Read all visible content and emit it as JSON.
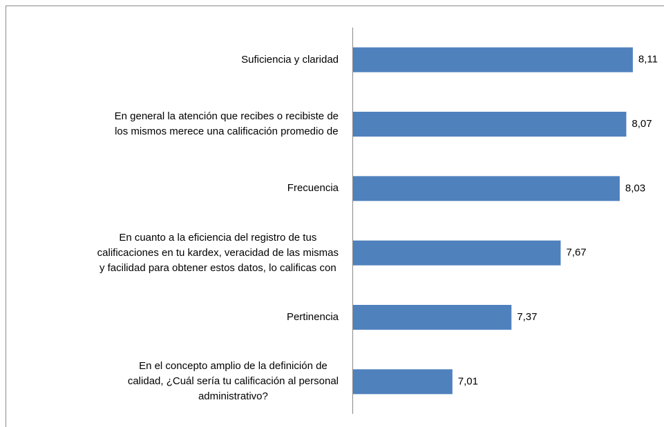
{
  "chart_data": {
    "type": "barh",
    "categories": [
      "Suficiencia y claridad",
      "En general  la atención que recibes o recibiste de\nlos mismos merece una calificación promedio de",
      "Frecuencia",
      "En cuanto a la eficiencia del registro de tus\ncalificaciones en tu kardex, veracidad de las mismas\ny facilidad para obtener estos datos, lo calificas con",
      "Pertinencia",
      "En el concepto amplio de la definición de\ncalidad, ¿Cuál sería tu calificación al personal\nadministrativo?"
    ],
    "values": [
      8.11,
      8.07,
      8.03,
      7.67,
      7.37,
      7.01
    ],
    "value_labels": [
      "8,11",
      "8,07",
      "8,03",
      "7,67",
      "7,37",
      "7,01"
    ],
    "color": "#4f81bd",
    "xlim": [
      6.4,
      8.3
    ]
  }
}
